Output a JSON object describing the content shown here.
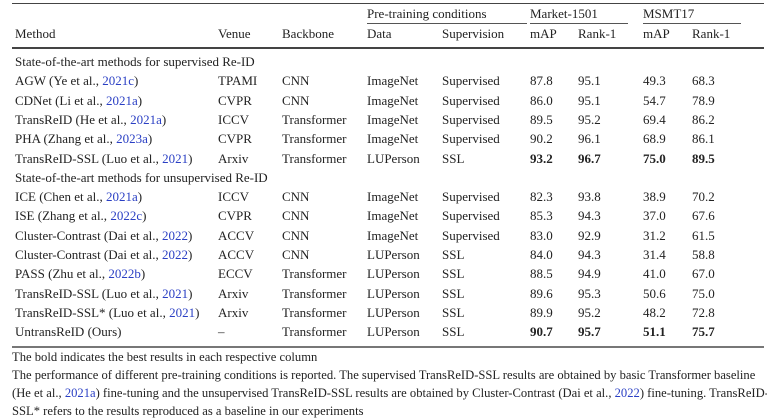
{
  "header": {
    "groups": [
      "Pre-training conditions",
      "Market-1501",
      "MSMT17"
    ],
    "columns": [
      "Method",
      "Venue",
      "Backbone",
      "Data",
      "Supervision",
      "mAP",
      "Rank-1",
      "mAP",
      "Rank-1"
    ]
  },
  "sections": [
    {
      "title": "State-of-the-art methods for supervised Re-ID",
      "rows": [
        {
          "pre": "AGW (Ye et al., ",
          "cite": "2021c",
          "post": ")",
          "venue": "TPAMI",
          "backbone": "CNN",
          "data": "ImageNet",
          "sup": "Supervised",
          "vals": [
            "87.8",
            "95.1",
            "49.3",
            "68.3"
          ],
          "bold": [
            false,
            false,
            false,
            false
          ]
        },
        {
          "pre": "CDNet (Li et al., ",
          "cite": "2021a",
          "post": ")",
          "venue": "CVPR",
          "backbone": "CNN",
          "data": "ImageNet",
          "sup": "Supervised",
          "vals": [
            "86.0",
            "95.1",
            "54.7",
            "78.9"
          ],
          "bold": [
            false,
            false,
            false,
            false
          ]
        },
        {
          "pre": "TransReID (He et al., ",
          "cite": "2021a",
          "post": ")",
          "venue": "ICCV",
          "backbone": "Transformer",
          "data": "ImageNet",
          "sup": "Supervised",
          "vals": [
            "89.5",
            "95.2",
            "69.4",
            "86.2"
          ],
          "bold": [
            false,
            false,
            false,
            false
          ]
        },
        {
          "pre": "PHA (Zhang et al., ",
          "cite": "2023a",
          "post": ")",
          "venue": "CVPR",
          "backbone": "Transformer",
          "data": "ImageNet",
          "sup": "Supervised",
          "vals": [
            "90.2",
            "96.1",
            "68.9",
            "86.1"
          ],
          "bold": [
            false,
            false,
            false,
            false
          ]
        },
        {
          "pre": "TransReID-SSL (Luo et al., ",
          "cite": "2021",
          "post": ")",
          "venue": "Arxiv",
          "backbone": "Transformer",
          "data": "LUPerson",
          "sup": "SSL",
          "vals": [
            "93.2",
            "96.7",
            "75.0",
            "89.5"
          ],
          "bold": [
            true,
            true,
            true,
            true
          ]
        }
      ]
    },
    {
      "title": "State-of-the-art methods for unsupervised Re-ID",
      "rows": [
        {
          "pre": "ICE (Chen et al., ",
          "cite": "2021a",
          "post": ")",
          "venue": "ICCV",
          "backbone": "CNN",
          "data": "ImageNet",
          "sup": "Supervised",
          "vals": [
            "82.3",
            "93.8",
            "38.9",
            "70.2"
          ],
          "bold": [
            false,
            false,
            false,
            false
          ]
        },
        {
          "pre": "ISE (Zhang et al., ",
          "cite": "2022c",
          "post": ")",
          "venue": "CVPR",
          "backbone": "CNN",
          "data": "ImageNet",
          "sup": "Supervised",
          "vals": [
            "85.3",
            "94.3",
            "37.0",
            "67.6"
          ],
          "bold": [
            false,
            false,
            false,
            false
          ]
        },
        {
          "pre": "Cluster-Contrast (Dai et al., ",
          "cite": "2022",
          "post": ")",
          "venue": "ACCV",
          "backbone": "CNN",
          "data": "ImageNet",
          "sup": "Supervised",
          "vals": [
            "83.0",
            "92.9",
            "31.2",
            "61.5"
          ],
          "bold": [
            false,
            false,
            false,
            false
          ]
        },
        {
          "pre": "Cluster-Contrast (Dai et al., ",
          "cite": "2022",
          "post": ")",
          "venue": "ACCV",
          "backbone": "CNN",
          "data": "LUPerson",
          "sup": "SSL",
          "vals": [
            "84.0",
            "94.3",
            "31.4",
            "58.8"
          ],
          "bold": [
            false,
            false,
            false,
            false
          ]
        },
        {
          "pre": "PASS (Zhu et al., ",
          "cite": "2022b",
          "post": ")",
          "venue": "ECCV",
          "backbone": "Transformer",
          "data": "LUPerson",
          "sup": "SSL",
          "vals": [
            "88.5",
            "94.9",
            "41.0",
            "67.0"
          ],
          "bold": [
            false,
            false,
            false,
            false
          ]
        },
        {
          "pre": "TransReID-SSL (Luo et al., ",
          "cite": "2021",
          "post": ")",
          "venue": "Arxiv",
          "backbone": "Transformer",
          "data": "LUPerson",
          "sup": "SSL",
          "vals": [
            "89.6",
            "95.3",
            "50.6",
            "75.0"
          ],
          "bold": [
            false,
            false,
            false,
            false
          ]
        },
        {
          "pre": "TransReID-SSL* (Luo et al., ",
          "cite": "2021",
          "post": ")",
          "venue": "Arxiv",
          "backbone": "Transformer",
          "data": "LUPerson",
          "sup": "SSL",
          "vals": [
            "89.9",
            "95.2",
            "48.2",
            "72.8"
          ],
          "bold": [
            false,
            false,
            false,
            false
          ]
        },
        {
          "pre": "UntransReID (Ours)",
          "cite": "",
          "post": "",
          "venue": "–",
          "backbone": "Transformer",
          "data": "LUPerson",
          "sup": "SSL",
          "vals": [
            "90.7",
            "95.7",
            "51.1",
            "75.7"
          ],
          "bold": [
            true,
            true,
            true,
            true
          ]
        }
      ]
    }
  ],
  "notes": {
    "line1": "The bold indicates the best results in each respective column",
    "line2": "The performance of different pre-training conditions is reported. The supervised TransReID-SSL results are obtained by basic Transformer baseline",
    "line3_a": "(He et al., ",
    "line3_cite1": "2021a",
    "line3_b": ") fine-tuning and the unsupervised TransReID-SSL results are obtained by Cluster-Contrast (Dai et al., ",
    "line3_cite2": "2022",
    "line3_c": ") fine-tuning. TransReID-",
    "line4": "SSL* refers to the results reproduced as a baseline in our experiments"
  },
  "colors": {
    "citation": "#2a3fc4",
    "rule": "#444444"
  }
}
